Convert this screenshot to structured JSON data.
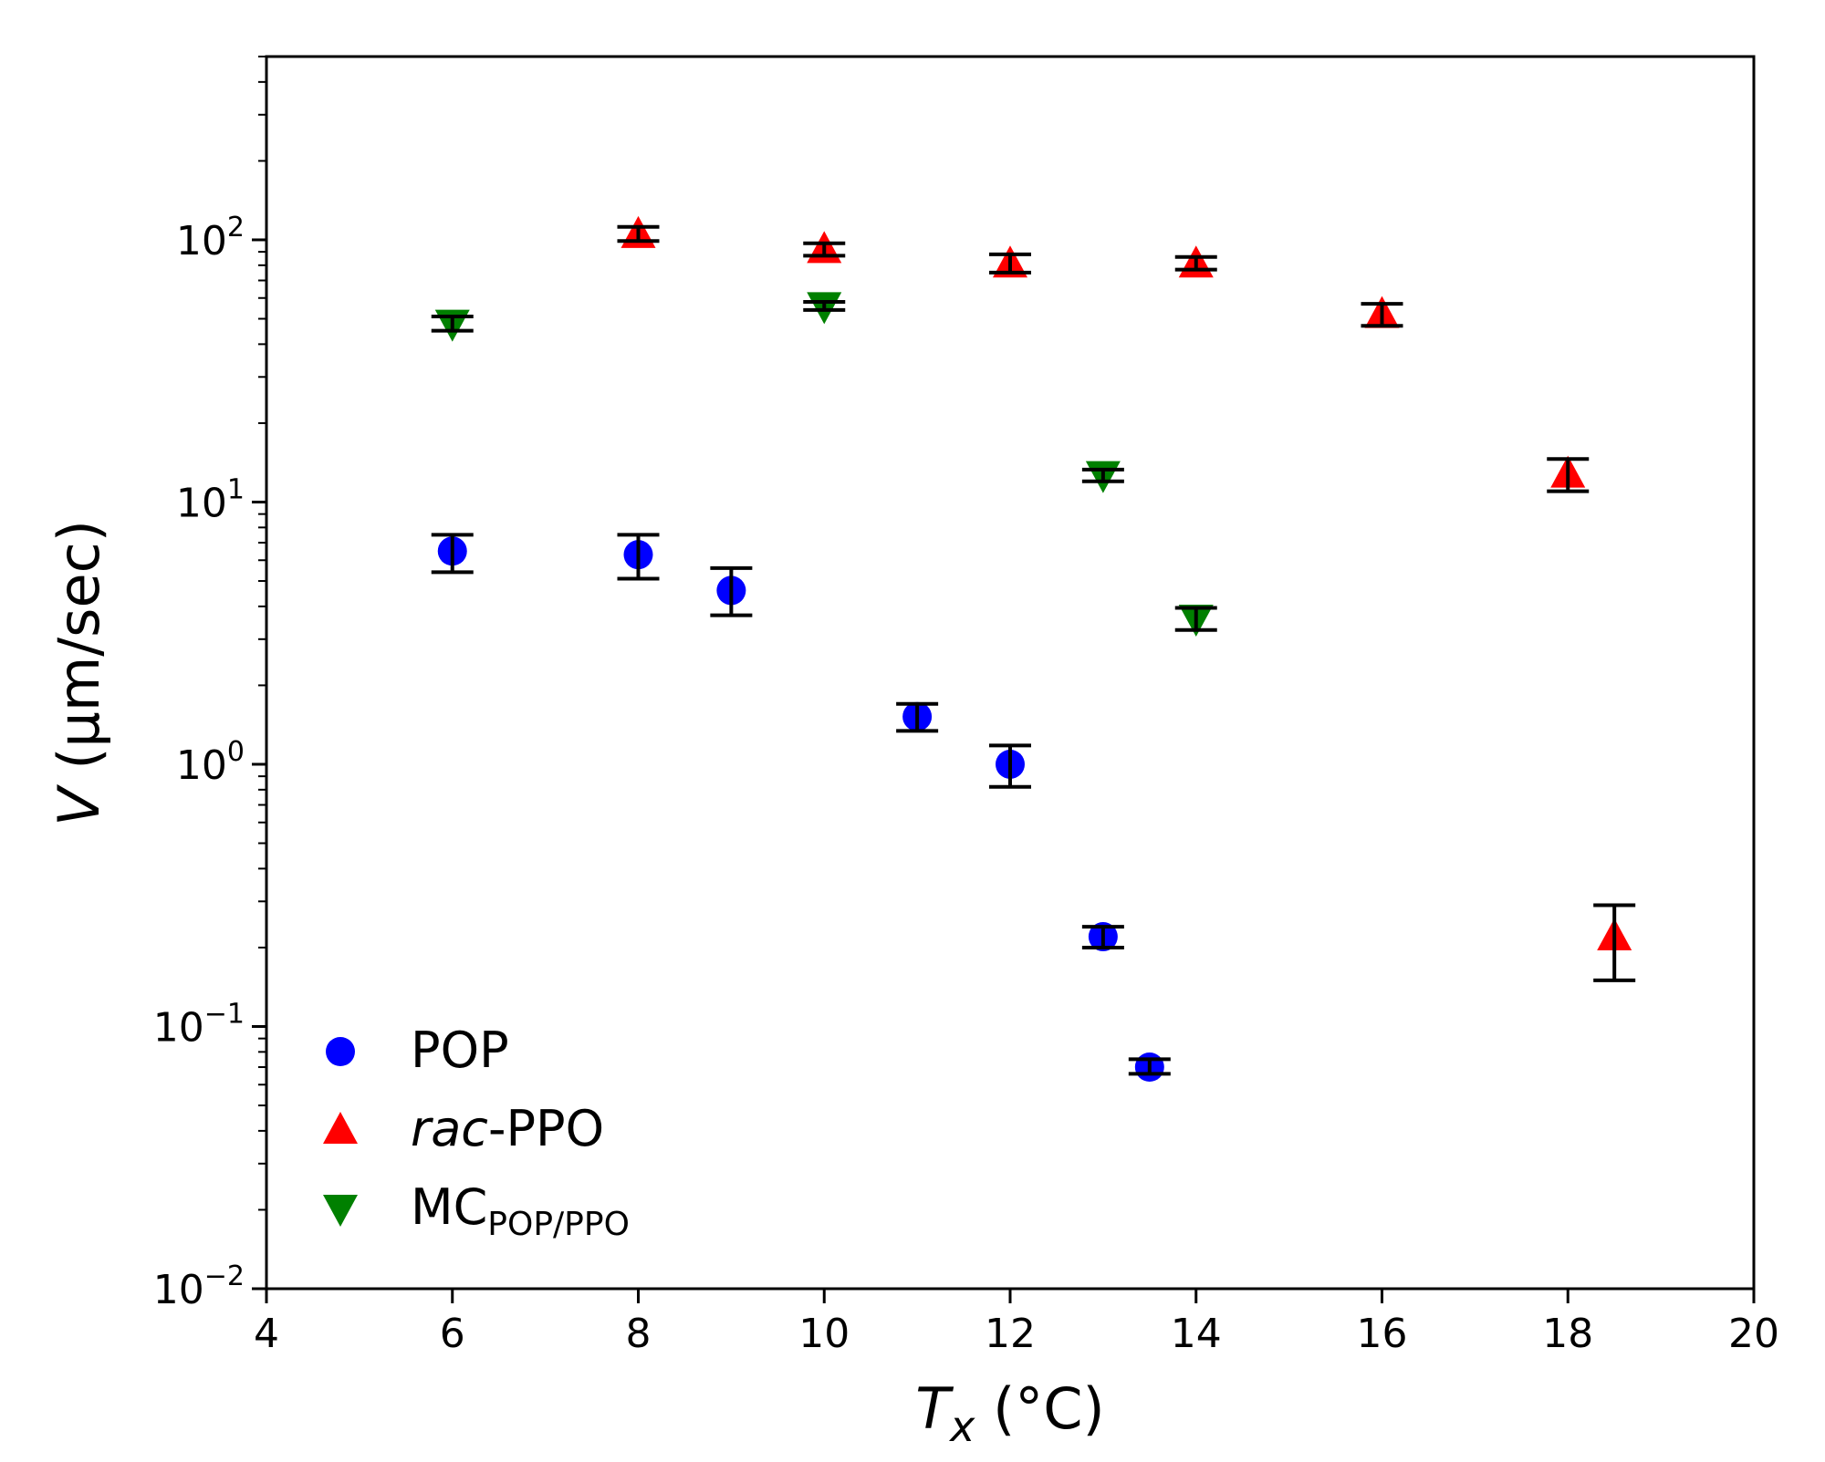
{
  "chart_data": {
    "type": "scatter",
    "xlabel_main": "T",
    "xlabel_sub": "x",
    "xlabel_unit": " (°C)",
    "ylabel_var": "V",
    "ylabel_unit": " (μm/sec)",
    "xlim": [
      4,
      20
    ],
    "ylim": [
      0.01,
      500
    ],
    "yscale": "log",
    "x_ticks": [
      4,
      6,
      8,
      10,
      12,
      14,
      16,
      18,
      20
    ],
    "x_tick_labels": [
      "4",
      "6",
      "8",
      "10",
      "12",
      "14",
      "16",
      "18",
      "20"
    ],
    "y_ticks": [
      {
        "value": 0.01,
        "base": "10",
        "exp": "−2"
      },
      {
        "value": 0.1,
        "base": "10",
        "exp": "−1"
      },
      {
        "value": 1,
        "base": "10",
        "exp": "0"
      },
      {
        "value": 10,
        "base": "10",
        "exp": "1"
      },
      {
        "value": 100,
        "base": "10",
        "exp": "2"
      }
    ],
    "legend_position": "lower-left",
    "series": [
      {
        "name": "POP",
        "marker": "circle",
        "color": "#0000ff",
        "points": [
          {
            "x": 6,
            "y": 6.5,
            "lo": 5.4,
            "hi": 7.5
          },
          {
            "x": 8,
            "y": 6.3,
            "lo": 5.1,
            "hi": 7.5
          },
          {
            "x": 9,
            "y": 4.6,
            "lo": 3.7,
            "hi": 5.6
          },
          {
            "x": 11,
            "y": 1.52,
            "lo": 1.34,
            "hi": 1.7
          },
          {
            "x": 12,
            "y": 1.0,
            "lo": 0.82,
            "hi": 1.18
          },
          {
            "x": 13,
            "y": 0.22,
            "lo": 0.2,
            "hi": 0.24
          },
          {
            "x": 13.5,
            "y": 0.07,
            "lo": 0.066,
            "hi": 0.075
          }
        ]
      },
      {
        "name": "rac-PPO",
        "name_italic": "rac",
        "name_rest": "-PPO",
        "marker": "triangle-up",
        "color": "#ff0000",
        "points": [
          {
            "x": 8,
            "y": 105,
            "lo": 99,
            "hi": 112
          },
          {
            "x": 10,
            "y": 92,
            "lo": 87,
            "hi": 97
          },
          {
            "x": 12,
            "y": 81,
            "lo": 75,
            "hi": 88
          },
          {
            "x": 14,
            "y": 81,
            "lo": 77,
            "hi": 86
          },
          {
            "x": 16,
            "y": 52,
            "lo": 47,
            "hi": 57
          },
          {
            "x": 18,
            "y": 12.8,
            "lo": 11.0,
            "hi": 14.6
          },
          {
            "x": 18.5,
            "y": 0.22,
            "lo": 0.15,
            "hi": 0.29
          }
        ]
      },
      {
        "name": "MC_POP/PPO",
        "name_main": "MC",
        "name_sub": "POP/PPO",
        "marker": "triangle-down",
        "color": "#008000",
        "points": [
          {
            "x": 6,
            "y": 48,
            "lo": 45,
            "hi": 51
          },
          {
            "x": 10,
            "y": 56,
            "lo": 54,
            "hi": 58
          },
          {
            "x": 13,
            "y": 12.7,
            "lo": 12.0,
            "hi": 13.3
          },
          {
            "x": 14,
            "y": 3.6,
            "lo": 3.25,
            "hi": 3.95
          }
        ]
      }
    ]
  },
  "errorbar_color": "#000000"
}
